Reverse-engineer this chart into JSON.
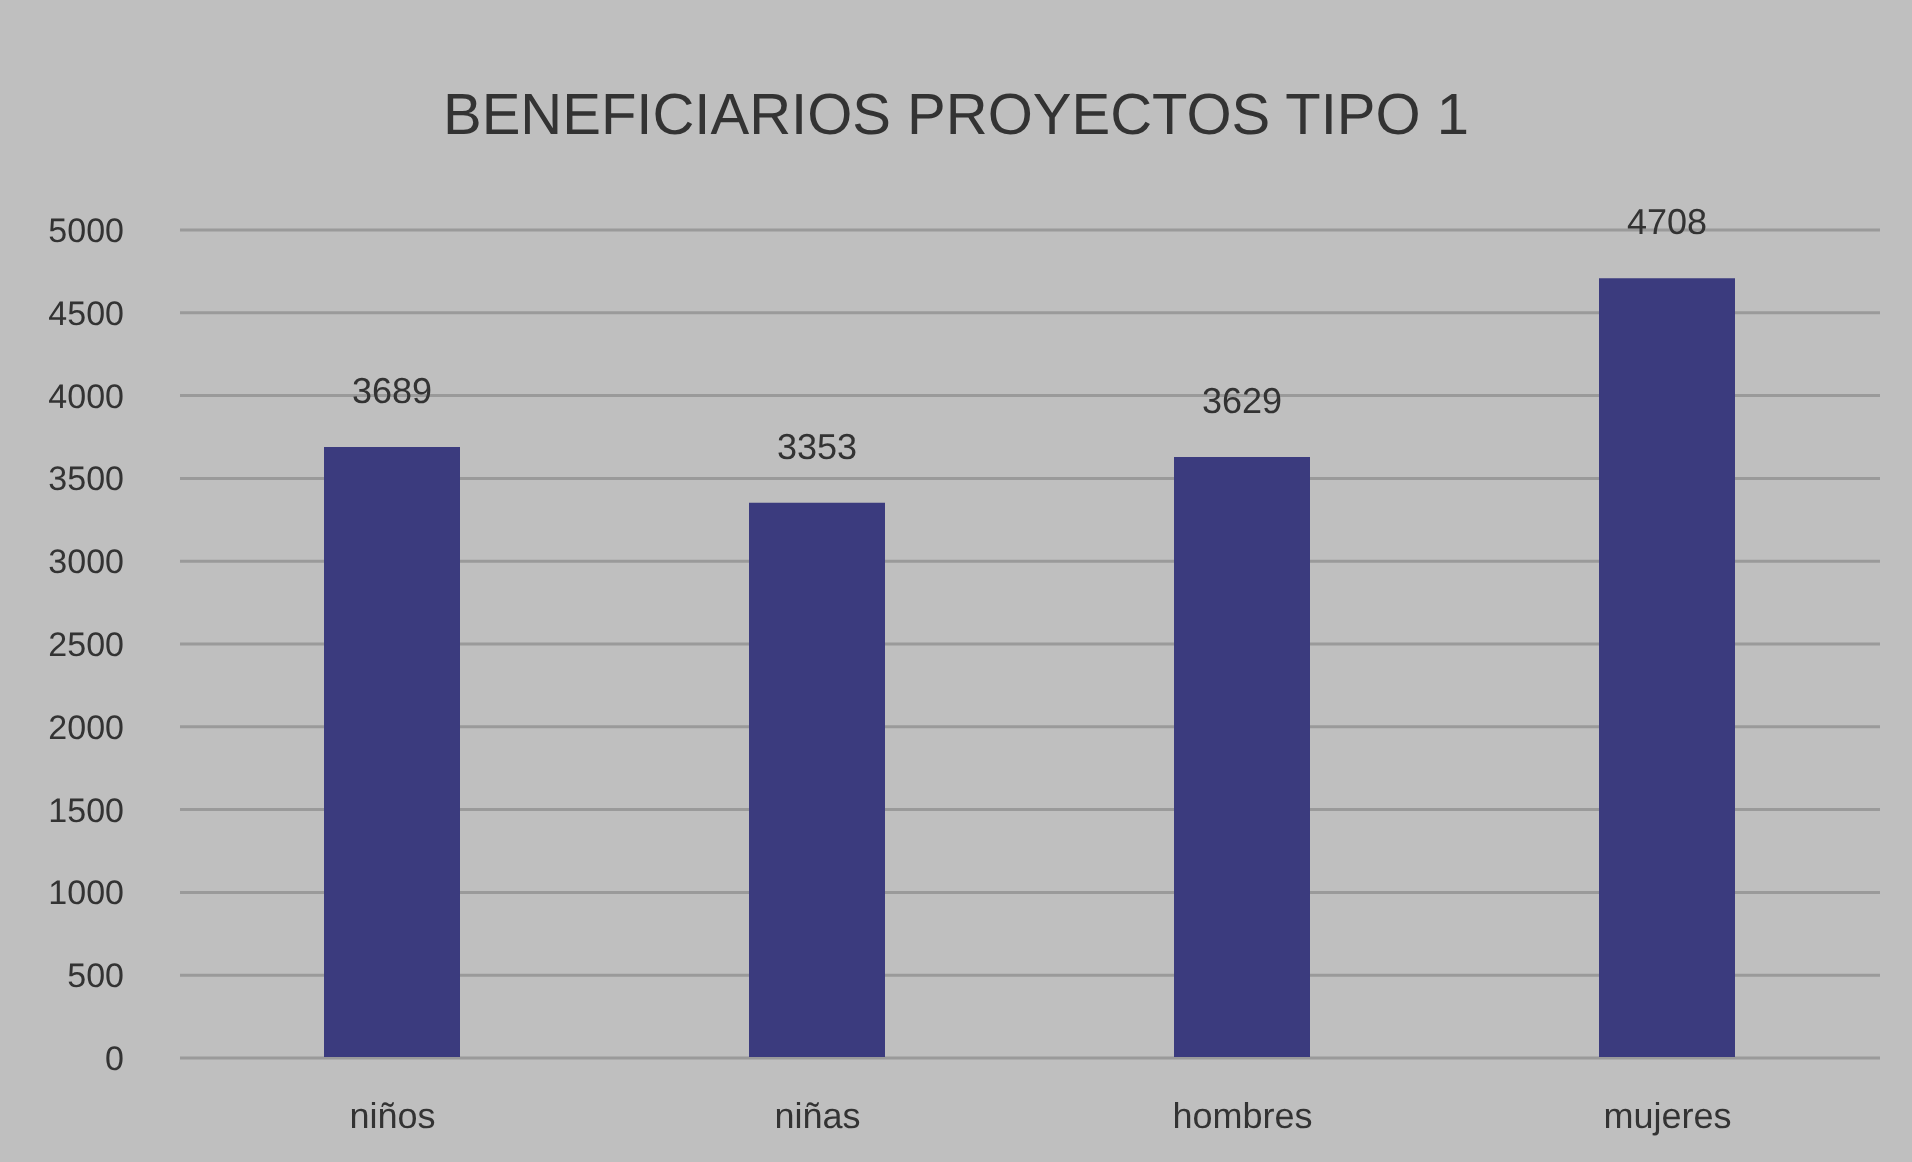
{
  "chart_data": {
    "type": "bar",
    "title": "BENEFICIARIOS PROYECTOS TIPO 1",
    "categories": [
      "niños",
      "niñas",
      "hombres",
      "mujeres"
    ],
    "values": [
      3689,
      3353,
      3629,
      4708
    ],
    "color": "#3b3b7e",
    "ylim": [
      0,
      5000
    ],
    "yticks": [
      0,
      500,
      1000,
      1500,
      2000,
      2500,
      3000,
      3500,
      4000,
      4500,
      5000
    ],
    "grid": "y",
    "data_labels": true,
    "legend": false
  }
}
